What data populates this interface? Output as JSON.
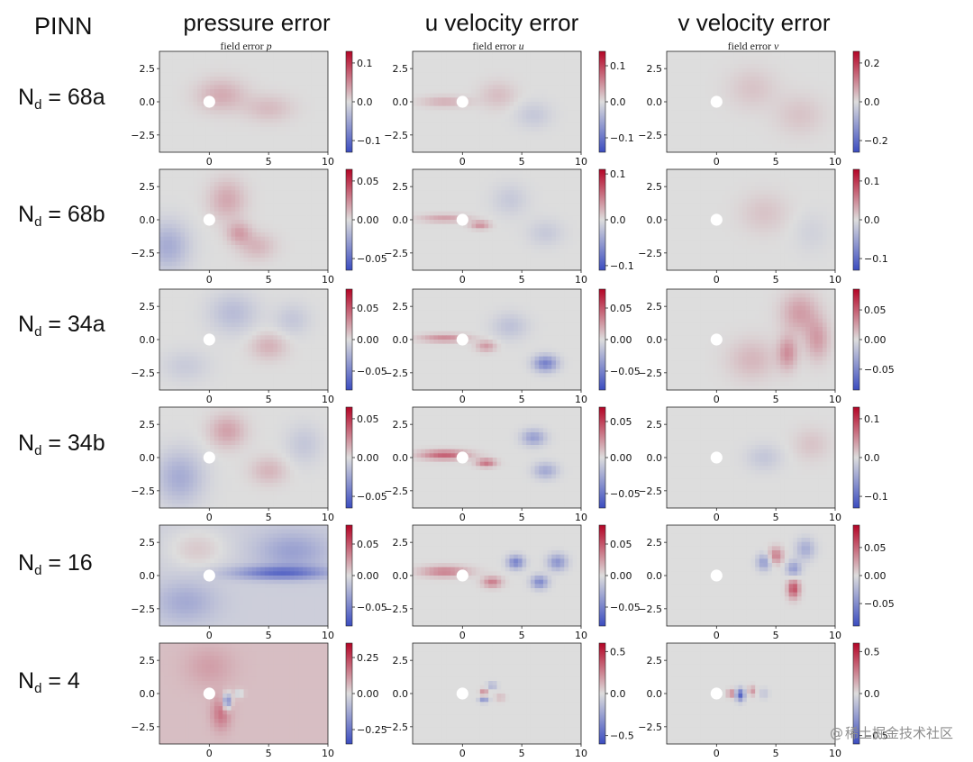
{
  "header": {
    "method_label": "PINN",
    "columns": [
      {
        "title": "pressure error",
        "subtitle_prefix": "field error",
        "subtitle_var": "p"
      },
      {
        "title": "u velocity error",
        "subtitle_prefix": "field error",
        "subtitle_var": "u"
      },
      {
        "title": "v velocity error",
        "subtitle_prefix": "field error",
        "subtitle_var": "v"
      }
    ]
  },
  "rows": [
    {
      "prefix": "N",
      "sub": "d",
      "suffix": " = 68a"
    },
    {
      "prefix": "N",
      "sub": "d",
      "suffix": " = 68b"
    },
    {
      "prefix": "N",
      "sub": "d",
      "suffix": " = 34a"
    },
    {
      "prefix": "N",
      "sub": "d",
      "suffix": " = 34b"
    },
    {
      "prefix": "N",
      "sub": "d",
      "suffix": " = 16"
    },
    {
      "prefix": "N",
      "sub": "d",
      "suffix": " = 4"
    }
  ],
  "watermark": {
    "at": "@",
    "text": "稀土掘金技术社区"
  },
  "colors": {
    "negative": "#3b4cc0",
    "neutral": "#dddddd",
    "positive": "#b40426",
    "cylinder": "#ffffff"
  },
  "chart_data": {
    "type": "heatmap",
    "colormap": "coolwarm",
    "x_ticks": [
      0,
      5,
      10
    ],
    "x_tick_labels": [
      "0",
      "5",
      "10"
    ],
    "xlim": [
      -4.2,
      10
    ],
    "y_ticks": [
      2.5,
      0.0,
      -2.5
    ],
    "y_tick_labels": [
      "2.5",
      "0.0",
      "−2.5"
    ],
    "ylim": [
      -3.8,
      3.8
    ],
    "cylinder": {
      "x": 0,
      "y": 0,
      "radius": 0.5
    },
    "panels": [
      {
        "row": 0,
        "col": 0,
        "cbar_range": [
          -0.13,
          0.13
        ],
        "cbar_ticks": [
          0.1,
          0.0,
          -0.1
        ],
        "cbar_labels": [
          "0.1",
          "0.0",
          "−0.1"
        ],
        "base": 0.0,
        "blobs": [
          {
            "x": 1,
            "y": 0.5,
            "sx": 2,
            "sy": 1.2,
            "a": 0.03
          },
          {
            "x": 5,
            "y": -0.5,
            "sx": 2,
            "sy": 1,
            "a": 0.02
          }
        ]
      },
      {
        "row": 0,
        "col": 1,
        "cbar_range": [
          -0.14,
          0.14
        ],
        "cbar_ticks": [
          0.1,
          0.0,
          -0.1
        ],
        "cbar_labels": [
          "0.1",
          "0.0",
          "−0.1"
        ],
        "base": 0.0,
        "blobs": [
          {
            "x": -1.5,
            "y": 0,
            "sx": 2,
            "sy": 0.4,
            "a": 0.03
          },
          {
            "x": 3,
            "y": 0.5,
            "sx": 1.5,
            "sy": 1,
            "a": 0.02
          },
          {
            "x": 6,
            "y": -1,
            "sx": 1.5,
            "sy": 1,
            "a": -0.02
          }
        ]
      },
      {
        "row": 0,
        "col": 2,
        "cbar_range": [
          -0.26,
          0.26
        ],
        "cbar_ticks": [
          0.2,
          0.0,
          -0.2
        ],
        "cbar_labels": [
          "0.2",
          "0.0",
          "−0.2"
        ],
        "base": 0.0,
        "blobs": [
          {
            "x": 3,
            "y": 1,
            "sx": 2,
            "sy": 1.5,
            "a": 0.03
          },
          {
            "x": 7,
            "y": -1,
            "sx": 2,
            "sy": 1.5,
            "a": 0.03
          }
        ]
      },
      {
        "row": 1,
        "col": 0,
        "cbar_range": [
          -0.065,
          0.065
        ],
        "cbar_ticks": [
          0.05,
          0.0,
          -0.05
        ],
        "cbar_labels": [
          "0.05",
          "0.00",
          "−0.05"
        ],
        "base": 0.0,
        "blobs": [
          {
            "x": -3.5,
            "y": -2,
            "sx": 1.8,
            "sy": 1.8,
            "a": -0.022
          },
          {
            "x": 1.5,
            "y": 1.5,
            "sx": 1.5,
            "sy": 1.5,
            "a": 0.016
          },
          {
            "x": 2.5,
            "y": -1,
            "sx": 1,
            "sy": 0.8,
            "a": 0.018
          },
          {
            "x": 4,
            "y": -2,
            "sx": 1.5,
            "sy": 1,
            "a": 0.012
          }
        ]
      },
      {
        "row": 1,
        "col": 1,
        "cbar_range": [
          -0.11,
          0.11
        ],
        "cbar_ticks": [
          0.1,
          0.0,
          -0.1
        ],
        "cbar_labels": [
          "0.1",
          "0.0",
          "−0.1"
        ],
        "base": 0.0,
        "blobs": [
          {
            "x": -1.5,
            "y": 0.1,
            "sx": 2,
            "sy": 0.3,
            "a": 0.03
          },
          {
            "x": 1.5,
            "y": -0.4,
            "sx": 0.8,
            "sy": 0.3,
            "a": 0.04
          },
          {
            "x": 4,
            "y": 1.5,
            "sx": 1.5,
            "sy": 1.2,
            "a": -0.015
          },
          {
            "x": 7,
            "y": -1,
            "sx": 1.5,
            "sy": 1,
            "a": -0.015
          }
        ]
      },
      {
        "row": 1,
        "col": 2,
        "cbar_range": [
          -0.13,
          0.13
        ],
        "cbar_ticks": [
          0.1,
          0.0,
          -0.1
        ],
        "cbar_labels": [
          "0.1",
          "0.0",
          "−0.1"
        ],
        "base": 0.0,
        "blobs": [
          {
            "x": 4,
            "y": 0.5,
            "sx": 2,
            "sy": 1.5,
            "a": 0.015
          },
          {
            "x": 8,
            "y": -1,
            "sx": 1.5,
            "sy": 1.5,
            "a": -0.01
          }
        ]
      },
      {
        "row": 2,
        "col": 0,
        "cbar_range": [
          -0.08,
          0.08
        ],
        "cbar_ticks": [
          0.05,
          0.0,
          -0.05
        ],
        "cbar_labels": [
          "0.05",
          "0.00",
          "−0.05"
        ],
        "base": 0.0,
        "blobs": [
          {
            "x": 2,
            "y": 2,
            "sx": 2,
            "sy": 1.5,
            "a": -0.018
          },
          {
            "x": 5,
            "y": -0.5,
            "sx": 1.5,
            "sy": 1,
            "a": 0.016
          },
          {
            "x": 7,
            "y": 1.5,
            "sx": 1.5,
            "sy": 1.2,
            "a": -0.012
          },
          {
            "x": -2,
            "y": -2,
            "sx": 2,
            "sy": 1.2,
            "a": -0.01
          }
        ]
      },
      {
        "row": 2,
        "col": 1,
        "cbar_range": [
          -0.08,
          0.08
        ],
        "cbar_ticks": [
          0.05,
          0.0,
          -0.05
        ],
        "cbar_labels": [
          "0.05",
          "0.00",
          "−0.05"
        ],
        "base": 0.0,
        "blobs": [
          {
            "x": -1.5,
            "y": 0.1,
            "sx": 2,
            "sy": 0.3,
            "a": 0.03
          },
          {
            "x": 7,
            "y": -1.8,
            "sx": 1,
            "sy": 0.6,
            "a": -0.05
          },
          {
            "x": 4,
            "y": 1,
            "sx": 1.5,
            "sy": 1,
            "a": -0.015
          },
          {
            "x": 2,
            "y": -0.5,
            "sx": 0.8,
            "sy": 0.4,
            "a": 0.025
          }
        ]
      },
      {
        "row": 2,
        "col": 2,
        "cbar_range": [
          -0.085,
          0.085
        ],
        "cbar_ticks": [
          0.05,
          0.0,
          -0.05
        ],
        "cbar_labels": [
          "0.05",
          "0.00",
          "−0.05"
        ],
        "base": 0.0,
        "blobs": [
          {
            "x": 7,
            "y": 2,
            "sx": 1.5,
            "sy": 1.5,
            "a": 0.025
          },
          {
            "x": 6,
            "y": -1,
            "sx": 0.8,
            "sy": 1.2,
            "a": 0.03
          },
          {
            "x": 8.5,
            "y": 0,
            "sx": 1,
            "sy": 1.5,
            "a": 0.025
          },
          {
            "x": 3,
            "y": -1.5,
            "sx": 2,
            "sy": 1.5,
            "a": 0.015
          }
        ]
      },
      {
        "row": 3,
        "col": 0,
        "cbar_range": [
          -0.065,
          0.065
        ],
        "cbar_ticks": [
          0.05,
          0.0,
          -0.05
        ],
        "cbar_labels": [
          "0.05",
          "0.00",
          "−0.05"
        ],
        "base": 0.0,
        "blobs": [
          {
            "x": -2.5,
            "y": -1.5,
            "sx": 2,
            "sy": 2,
            "a": -0.022
          },
          {
            "x": 1.5,
            "y": 2,
            "sx": 1.5,
            "sy": 1.2,
            "a": 0.018
          },
          {
            "x": 5,
            "y": -1,
            "sx": 1.5,
            "sy": 1,
            "a": 0.012
          },
          {
            "x": 8,
            "y": 1,
            "sx": 1.5,
            "sy": 1.5,
            "a": -0.01
          }
        ]
      },
      {
        "row": 3,
        "col": 1,
        "cbar_range": [
          -0.07,
          0.07
        ],
        "cbar_ticks": [
          0.05,
          0.0,
          -0.05
        ],
        "cbar_labels": [
          "0.05",
          "0.00",
          "−0.05"
        ],
        "base": 0.0,
        "blobs": [
          {
            "x": -1.5,
            "y": 0.2,
            "sx": 2,
            "sy": 0.35,
            "a": 0.04
          },
          {
            "x": 2,
            "y": -0.4,
            "sx": 0.8,
            "sy": 0.3,
            "a": 0.035
          },
          {
            "x": 6,
            "y": 1.5,
            "sx": 1,
            "sy": 0.6,
            "a": -0.03
          },
          {
            "x": 7,
            "y": -1,
            "sx": 1,
            "sy": 0.6,
            "a": -0.025
          }
        ]
      },
      {
        "row": 3,
        "col": 2,
        "cbar_range": [
          -0.13,
          0.13
        ],
        "cbar_ticks": [
          0.1,
          0.0,
          -0.1
        ],
        "cbar_labels": [
          "0.1",
          "0.0",
          "−0.1"
        ],
        "base": 0.0,
        "blobs": [
          {
            "x": 4,
            "y": 0,
            "sx": 1.5,
            "sy": 1,
            "a": -0.02
          },
          {
            "x": 8,
            "y": 1,
            "sx": 1.5,
            "sy": 1.2,
            "a": 0.015
          }
        ]
      },
      {
        "row": 4,
        "col": 0,
        "cbar_range": [
          -0.08,
          0.08
        ],
        "cbar_ticks": [
          0.05,
          0.0,
          -0.05
        ],
        "cbar_labels": [
          "0.05",
          "0.00",
          "−0.05"
        ],
        "base": -0.008,
        "blobs": [
          {
            "x": 6,
            "y": 0.2,
            "sx": 4,
            "sy": 0.5,
            "a": -0.05
          },
          {
            "x": 7,
            "y": 1.8,
            "sx": 3,
            "sy": 1.5,
            "a": -0.025
          },
          {
            "x": -1,
            "y": 2,
            "sx": 2.5,
            "sy": 1.5,
            "a": 0.015
          },
          {
            "x": -2,
            "y": -2,
            "sx": 2.5,
            "sy": 1.5,
            "a": -0.02
          }
        ]
      },
      {
        "row": 4,
        "col": 1,
        "cbar_range": [
          -0.08,
          0.08
        ],
        "cbar_ticks": [
          0.05,
          0.0,
          -0.05
        ],
        "cbar_labels": [
          "0.05",
          "0.00",
          "−0.05"
        ],
        "base": 0.0,
        "blobs": [
          {
            "x": -1.5,
            "y": 0.3,
            "sx": 2,
            "sy": 0.4,
            "a": 0.035
          },
          {
            "x": 4.5,
            "y": 1,
            "sx": 0.7,
            "sy": 0.5,
            "a": -0.05
          },
          {
            "x": 6.5,
            "y": -0.5,
            "sx": 0.7,
            "sy": 0.5,
            "a": -0.045
          },
          {
            "x": 8,
            "y": 1,
            "sx": 0.8,
            "sy": 0.6,
            "a": -0.04
          },
          {
            "x": 2.5,
            "y": -0.5,
            "sx": 0.8,
            "sy": 0.4,
            "a": 0.035
          }
        ]
      },
      {
        "row": 4,
        "col": 2,
        "cbar_range": [
          -0.09,
          0.09
        ],
        "cbar_ticks": [
          0.05,
          0.0,
          -0.05
        ],
        "cbar_labels": [
          "0.05",
          "0.00",
          "−0.05"
        ],
        "base": 0.0,
        "blobs": [
          {
            "x": 4,
            "y": 1,
            "sx": 0.6,
            "sy": 0.6,
            "a": -0.04
          },
          {
            "x": 6.5,
            "y": -1,
            "sx": 0.5,
            "sy": 0.7,
            "a": 0.06
          },
          {
            "x": 5,
            "y": 1.5,
            "sx": 0.6,
            "sy": 0.6,
            "a": 0.04
          },
          {
            "x": 7.5,
            "y": 2,
            "sx": 0.8,
            "sy": 0.8,
            "a": -0.03
          },
          {
            "x": 6.5,
            "y": 0.5,
            "sx": 0.6,
            "sy": 0.6,
            "a": -0.04
          }
        ]
      },
      {
        "row": 5,
        "col": 0,
        "cbar_range": [
          -0.35,
          0.35
        ],
        "cbar_ticks": [
          0.25,
          0.0,
          -0.25
        ],
        "cbar_labels": [
          "0.25",
          "0.00",
          "−0.25"
        ],
        "base": 0.05,
        "blobs": [
          {
            "x": 1.5,
            "y": -0.6,
            "sx": 0.35,
            "sy": 0.6,
            "a": -0.3
          },
          {
            "x": 2.5,
            "y": 0,
            "sx": 0.4,
            "sy": 0.3,
            "a": -0.1
          },
          {
            "x": 1,
            "y": -1.5,
            "sx": 0.8,
            "sy": 1.2,
            "a": 0.12
          },
          {
            "x": 0,
            "y": 2,
            "sx": 2,
            "sy": 1.5,
            "a": 0.05
          }
        ]
      },
      {
        "row": 5,
        "col": 1,
        "cbar_range": [
          -0.6,
          0.6
        ],
        "cbar_ticks": [
          0.5,
          0.0,
          -0.5
        ],
        "cbar_labels": [
          "0.5",
          "0.0",
          "−0.5"
        ],
        "base": 0.0,
        "blobs": [
          {
            "x": 1.8,
            "y": 0.1,
            "sx": 0.3,
            "sy": 0.25,
            "a": 0.25
          },
          {
            "x": 1.8,
            "y": -0.5,
            "sx": 0.4,
            "sy": 0.2,
            "a": -0.3
          },
          {
            "x": 2.5,
            "y": 0.6,
            "sx": 0.4,
            "sy": 0.25,
            "a": -0.2
          },
          {
            "x": 3.2,
            "y": -0.3,
            "sx": 0.4,
            "sy": 0.3,
            "a": 0.1
          }
        ]
      },
      {
        "row": 5,
        "col": 2,
        "cbar_range": [
          -0.6,
          0.6
        ],
        "cbar_ticks": [
          0.5,
          0.0,
          -0.5
        ],
        "cbar_labels": [
          "0.5",
          "0.0",
          "−0.5"
        ],
        "base": 0.0,
        "blobs": [
          {
            "x": 2,
            "y": -0.1,
            "sx": 0.35,
            "sy": 0.45,
            "a": -0.5
          },
          {
            "x": 1.2,
            "y": 0,
            "sx": 0.25,
            "sy": 0.3,
            "a": 0.3
          },
          {
            "x": 3,
            "y": 0.2,
            "sx": 0.3,
            "sy": 0.35,
            "a": 0.2
          },
          {
            "x": 4,
            "y": 0,
            "sx": 0.4,
            "sy": 0.4,
            "a": -0.1
          }
        ]
      }
    ]
  }
}
